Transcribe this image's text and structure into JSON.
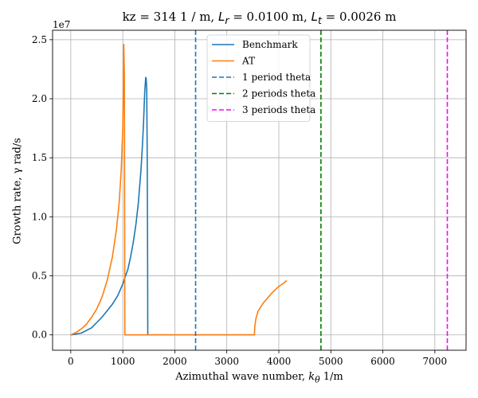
{
  "chart_data": {
    "type": "line",
    "title_prefix": "kz =  314 1 / m, ",
    "title_lr_symbol": "L",
    "title_lr_sub": "r",
    "title_lr_value": " = 0.0100 m, ",
    "title_lt_symbol": "L",
    "title_lt_sub": "t",
    "title_lt_value": " = 0.0026 m",
    "xlabel": "Azimuthal wave number, k_θ 1/m",
    "xlabel_main": "Azimuthal wave number, ",
    "xlabel_sym": "k",
    "xlabel_sub": "θ",
    "xlabel_unit": " 1/m",
    "ylabel": "Growth rate, γ rad/s",
    "y_offset_label": "1e7",
    "xlim": [
      -350,
      7600
    ],
    "ylim": [
      -0.13,
      2.58
    ],
    "y_scale": 10000000,
    "xticks": [
      0,
      1000,
      2000,
      3000,
      4000,
      5000,
      6000,
      7000
    ],
    "xtick_labels": [
      "0",
      "1000",
      "2000",
      "3000",
      "4000",
      "5000",
      "6000",
      "7000"
    ],
    "yticks": [
      0.0,
      0.5,
      1.0,
      1.5,
      2.0,
      2.5
    ],
    "ytick_labels": [
      "0.0",
      "0.5",
      "1.0",
      "1.5",
      "2.0",
      "2.5"
    ],
    "grid": true,
    "legend_position": "top-center",
    "series": [
      {
        "name": "Benchmark",
        "color": "#1f77b4",
        "style": "solid",
        "points": [
          [
            0,
            0
          ],
          [
            200,
            0.015
          ],
          [
            400,
            0.06
          ],
          [
            600,
            0.15
          ],
          [
            800,
            0.26
          ],
          [
            900,
            0.33
          ],
          [
            1000,
            0.43
          ],
          [
            1100,
            0.56
          ],
          [
            1150,
            0.66
          ],
          [
            1200,
            0.78
          ],
          [
            1250,
            0.93
          ],
          [
            1300,
            1.12
          ],
          [
            1350,
            1.4
          ],
          [
            1380,
            1.62
          ],
          [
            1400,
            1.8
          ],
          [
            1420,
            2.05
          ],
          [
            1440,
            2.18
          ],
          [
            1450,
            2.17
          ],
          [
            1460,
            2.08
          ],
          [
            1470,
            1.5
          ],
          [
            1478,
            0.6
          ],
          [
            1480,
            0
          ],
          [
            2400,
            0
          ],
          [
            3530,
            0
          ]
        ]
      },
      {
        "name": "AT",
        "color": "#ff7f0e",
        "style": "solid",
        "points": [
          [
            0,
            0
          ],
          [
            100,
            0.02
          ],
          [
            200,
            0.05
          ],
          [
            300,
            0.09
          ],
          [
            400,
            0.15
          ],
          [
            500,
            0.22
          ],
          [
            600,
            0.32
          ],
          [
            700,
            0.46
          ],
          [
            800,
            0.66
          ],
          [
            880,
            0.9
          ],
          [
            930,
            1.12
          ],
          [
            970,
            1.4
          ],
          [
            1000,
            1.75
          ],
          [
            1010,
            2.05
          ],
          [
            1020,
            2.46
          ],
          [
            1030,
            2.2
          ],
          [
            1035,
            1.2
          ],
          [
            1040,
            0
          ],
          [
            2000,
            0
          ],
          [
            3530,
            0
          ],
          [
            3540,
            0.08
          ],
          [
            3560,
            0.14
          ],
          [
            3600,
            0.2
          ],
          [
            3700,
            0.27
          ],
          [
            3800,
            0.32
          ],
          [
            3900,
            0.37
          ],
          [
            4000,
            0.41
          ],
          [
            4100,
            0.44
          ],
          [
            4150,
            0.46
          ]
        ]
      },
      {
        "name": "1 period theta",
        "color": "#1f77b4",
        "style": "dashed",
        "vline_x": 2400
      },
      {
        "name": "2 periods theta",
        "color": "#008000",
        "style": "dashed",
        "vline_x": 4810
      },
      {
        "name": "3 periods theta",
        "color": "#ff00ff",
        "style": "dashed",
        "vline_x": 7240
      }
    ]
  }
}
